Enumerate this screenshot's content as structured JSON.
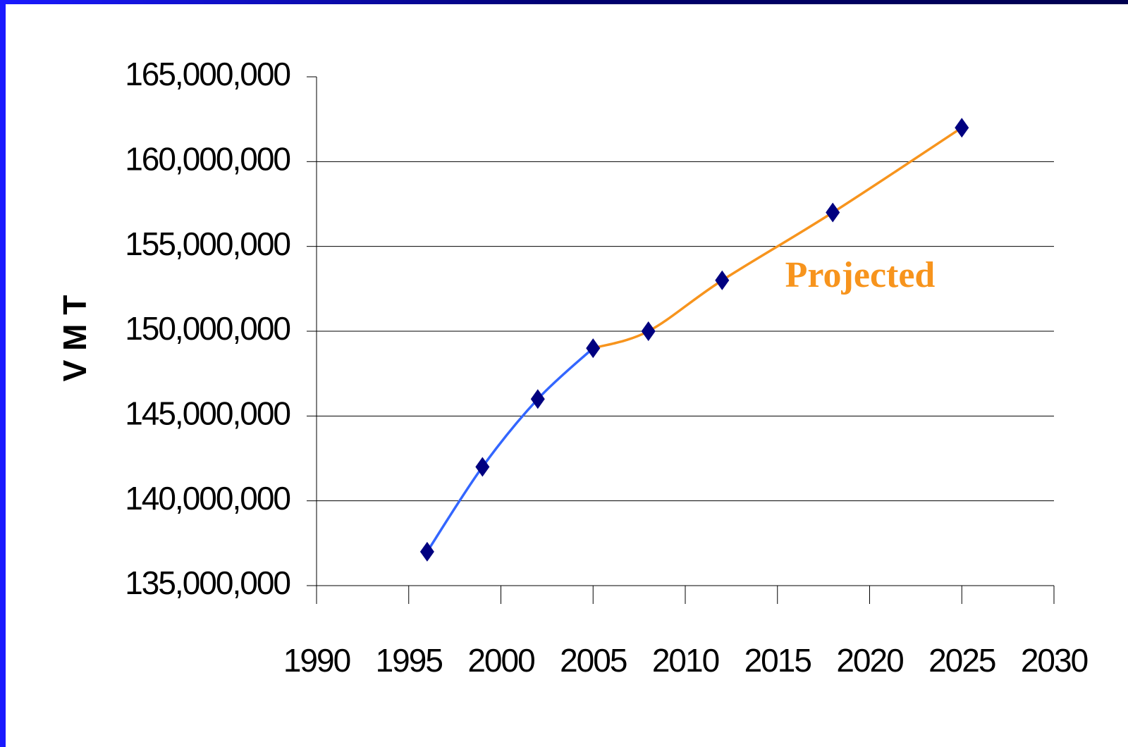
{
  "chart_data": {
    "type": "line",
    "y_label": "V M T",
    "annotation": "Projected",
    "x": [
      1996,
      1999,
      2002,
      2005,
      2008,
      2012,
      2018,
      2025
    ],
    "series": [
      {
        "color": "#3366ff",
        "values": [
          137000000,
          142000000,
          146000000,
          149000000,
          null,
          null,
          null,
          null
        ]
      },
      {
        "color": "#f7941d",
        "values": [
          null,
          null,
          null,
          149000000,
          150000000,
          153000000,
          157000000,
          162000000
        ]
      }
    ],
    "marker_color": "#000080",
    "xlim": [
      1990,
      2030
    ],
    "xticks": [
      1990,
      1995,
      2000,
      2005,
      2010,
      2015,
      2020,
      2025,
      2030
    ],
    "ylim": [
      135000000,
      165000000
    ],
    "yticks": [
      {
        "value": 135000000,
        "label": "135,000,000"
      },
      {
        "value": 140000000,
        "label": "140,000,000"
      },
      {
        "value": 145000000,
        "label": "145,000,000"
      },
      {
        "value": 150000000,
        "label": "150,000,000"
      },
      {
        "value": 155000000,
        "label": "155,000,000"
      },
      {
        "value": 160000000,
        "label": "160,000,000"
      },
      {
        "value": 165000000,
        "label": "165,000,000"
      }
    ],
    "grid": true
  }
}
